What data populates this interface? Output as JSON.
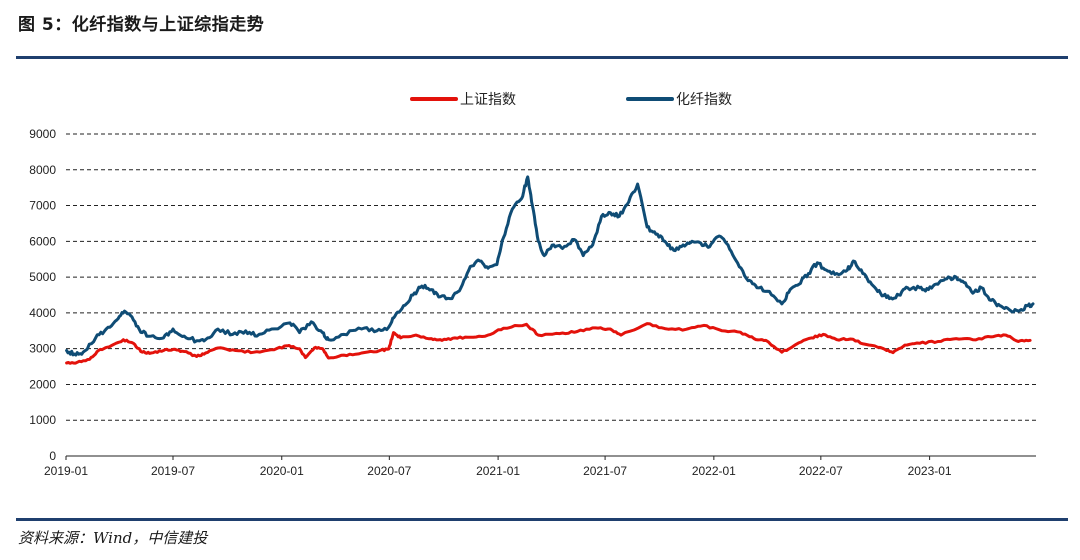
{
  "figure": {
    "title": "图 5：化纤指数与上证综指走势",
    "source": "资料来源：Wind，中信建投"
  },
  "chart_data": {
    "type": "line",
    "title": "",
    "xlabel": "",
    "ylabel": "",
    "ylim": [
      0,
      9000
    ],
    "yticks": [
      0,
      1000,
      2000,
      3000,
      4000,
      5000,
      6000,
      7000,
      8000,
      9000
    ],
    "xticks": [
      "2019-01",
      "2019-07",
      "2020-01",
      "2020-07",
      "2021-01",
      "2021-07",
      "2022-01",
      "2022-07",
      "2023-01"
    ],
    "x_range": [
      "2019-01",
      "2023-06"
    ],
    "grid": "horizontal dashed",
    "legend_position": "top-center",
    "series": [
      {
        "name": "上证指数",
        "color": "#e3120b",
        "points": [
          [
            "2019-01-02",
            2600
          ],
          [
            "2019-01-20",
            2620
          ],
          [
            "2019-02-10",
            2700
          ],
          [
            "2019-02-25",
            2950
          ],
          [
            "2019-03-15",
            3050
          ],
          [
            "2019-04-08",
            3250
          ],
          [
            "2019-04-25",
            3150
          ],
          [
            "2019-05-10",
            2900
          ],
          [
            "2019-05-25",
            2880
          ],
          [
            "2019-06-15",
            2950
          ],
          [
            "2019-07-01",
            2980
          ],
          [
            "2019-07-20",
            2920
          ],
          [
            "2019-08-10",
            2780
          ],
          [
            "2019-08-25",
            2880
          ],
          [
            "2019-09-15",
            3020
          ],
          [
            "2019-10-15",
            2950
          ],
          [
            "2019-11-15",
            2900
          ],
          [
            "2019-12-15",
            2970
          ],
          [
            "2020-01-10",
            3080
          ],
          [
            "2020-01-31",
            3000
          ],
          [
            "2020-02-10",
            2750
          ],
          [
            "2020-02-25",
            3020
          ],
          [
            "2020-03-10",
            3000
          ],
          [
            "2020-03-20",
            2740
          ],
          [
            "2020-04-15",
            2820
          ],
          [
            "2020-05-15",
            2880
          ],
          [
            "2020-06-15",
            2950
          ],
          [
            "2020-06-30",
            2990
          ],
          [
            "2020-07-08",
            3450
          ],
          [
            "2020-07-20",
            3300
          ],
          [
            "2020-08-15",
            3380
          ],
          [
            "2020-09-10",
            3280
          ],
          [
            "2020-09-28",
            3230
          ],
          [
            "2020-10-20",
            3300
          ],
          [
            "2020-11-15",
            3320
          ],
          [
            "2020-12-15",
            3380
          ],
          [
            "2021-01-10",
            3570
          ],
          [
            "2021-02-18",
            3680
          ],
          [
            "2021-03-10",
            3380
          ],
          [
            "2021-04-15",
            3420
          ],
          [
            "2021-05-15",
            3480
          ],
          [
            "2021-06-15",
            3580
          ],
          [
            "2021-07-10",
            3550
          ],
          [
            "2021-07-28",
            3380
          ],
          [
            "2021-09-10",
            3700
          ],
          [
            "2021-10-10",
            3560
          ],
          [
            "2021-11-15",
            3540
          ],
          [
            "2021-12-15",
            3650
          ],
          [
            "2022-01-15",
            3500
          ],
          [
            "2022-02-15",
            3460
          ],
          [
            "2022-03-10",
            3280
          ],
          [
            "2022-03-30",
            3230
          ],
          [
            "2022-04-26",
            2900
          ],
          [
            "2022-05-20",
            3120
          ],
          [
            "2022-06-15",
            3300
          ],
          [
            "2022-07-05",
            3400
          ],
          [
            "2022-07-28",
            3250
          ],
          [
            "2022-08-20",
            3270
          ],
          [
            "2022-09-15",
            3120
          ],
          [
            "2022-10-15",
            3000
          ],
          [
            "2022-10-31",
            2890
          ],
          [
            "2022-11-20",
            3100
          ],
          [
            "2022-12-15",
            3150
          ],
          [
            "2023-01-15",
            3200
          ],
          [
            "2023-02-15",
            3280
          ],
          [
            "2023-03-15",
            3250
          ],
          [
            "2023-04-15",
            3330
          ],
          [
            "2023-05-10",
            3380
          ],
          [
            "2023-05-31",
            3200
          ],
          [
            "2023-06-20",
            3230
          ]
        ]
      },
      {
        "name": "化纤指数",
        "color": "#0f4c75",
        "points": [
          [
            "2019-01-02",
            2950
          ],
          [
            "2019-01-15",
            2850
          ],
          [
            "2019-01-30",
            2900
          ],
          [
            "2019-02-20",
            3300
          ],
          [
            "2019-03-10",
            3550
          ],
          [
            "2019-03-28",
            3800
          ],
          [
            "2019-04-10",
            4050
          ],
          [
            "2019-04-25",
            3800
          ],
          [
            "2019-05-10",
            3450
          ],
          [
            "2019-05-25",
            3350
          ],
          [
            "2019-06-15",
            3300
          ],
          [
            "2019-07-01",
            3550
          ],
          [
            "2019-07-20",
            3350
          ],
          [
            "2019-08-10",
            3220
          ],
          [
            "2019-08-25",
            3250
          ],
          [
            "2019-09-15",
            3550
          ],
          [
            "2019-10-10",
            3400
          ],
          [
            "2019-11-01",
            3500
          ],
          [
            "2019-11-20",
            3350
          ],
          [
            "2019-12-15",
            3550
          ],
          [
            "2020-01-15",
            3720
          ],
          [
            "2020-01-31",
            3450
          ],
          [
            "2020-02-20",
            3750
          ],
          [
            "2020-03-10",
            3450
          ],
          [
            "2020-03-20",
            3250
          ],
          [
            "2020-04-15",
            3400
          ],
          [
            "2020-05-15",
            3550
          ],
          [
            "2020-06-10",
            3500
          ],
          [
            "2020-06-30",
            3600
          ],
          [
            "2020-07-10",
            3900
          ],
          [
            "2020-07-25",
            4200
          ],
          [
            "2020-08-10",
            4500
          ],
          [
            "2020-08-25",
            4750
          ],
          [
            "2020-09-10",
            4650
          ],
          [
            "2020-09-25",
            4450
          ],
          [
            "2020-10-15",
            4400
          ],
          [
            "2020-10-30",
            4700
          ],
          [
            "2020-11-15",
            5300
          ],
          [
            "2020-12-01",
            5450
          ],
          [
            "2020-12-15",
            5250
          ],
          [
            "2020-12-30",
            5350
          ],
          [
            "2021-01-10",
            6100
          ],
          [
            "2021-01-25",
            6900
          ],
          [
            "2021-02-10",
            7200
          ],
          [
            "2021-02-20",
            7800
          ],
          [
            "2021-02-28",
            7000
          ],
          [
            "2021-03-10",
            6000
          ],
          [
            "2021-03-20",
            5600
          ],
          [
            "2021-04-05",
            5900
          ],
          [
            "2021-04-20",
            5800
          ],
          [
            "2021-05-10",
            6050
          ],
          [
            "2021-05-25",
            5600
          ],
          [
            "2021-06-10",
            5900
          ],
          [
            "2021-06-25",
            6700
          ],
          [
            "2021-07-10",
            6800
          ],
          [
            "2021-07-25",
            6700
          ],
          [
            "2021-08-10",
            7100
          ],
          [
            "2021-08-25",
            7600
          ],
          [
            "2021-09-10",
            6400
          ],
          [
            "2021-09-25",
            6200
          ],
          [
            "2021-10-10",
            6000
          ],
          [
            "2021-10-25",
            5750
          ],
          [
            "2021-11-10",
            5900
          ],
          [
            "2021-11-25",
            6000
          ],
          [
            "2021-12-10",
            5950
          ],
          [
            "2021-12-25",
            5850
          ],
          [
            "2022-01-10",
            6150
          ],
          [
            "2022-01-25",
            5900
          ],
          [
            "2022-02-10",
            5400
          ],
          [
            "2022-02-28",
            4900
          ],
          [
            "2022-03-15",
            4700
          ],
          [
            "2022-04-05",
            4600
          ],
          [
            "2022-04-26",
            4250
          ],
          [
            "2022-05-10",
            4650
          ],
          [
            "2022-05-25",
            4800
          ],
          [
            "2022-06-10",
            5100
          ],
          [
            "2022-06-25",
            5400
          ],
          [
            "2022-07-10",
            5200
          ],
          [
            "2022-07-28",
            5100
          ],
          [
            "2022-08-15",
            5200
          ],
          [
            "2022-08-25",
            5450
          ],
          [
            "2022-09-10",
            5100
          ],
          [
            "2022-09-25",
            4800
          ],
          [
            "2022-10-10",
            4550
          ],
          [
            "2022-10-25",
            4400
          ],
          [
            "2022-11-10",
            4500
          ],
          [
            "2022-11-25",
            4700
          ],
          [
            "2022-12-15",
            4700
          ],
          [
            "2022-12-30",
            4650
          ],
          [
            "2023-01-15",
            4800
          ],
          [
            "2023-01-30",
            4950
          ],
          [
            "2023-02-15",
            5000
          ],
          [
            "2023-02-28",
            4850
          ],
          [
            "2023-03-15",
            4550
          ],
          [
            "2023-03-30",
            4700
          ],
          [
            "2023-04-15",
            4350
          ],
          [
            "2023-04-30",
            4200
          ],
          [
            "2023-05-15",
            4100
          ],
          [
            "2023-05-31",
            4050
          ],
          [
            "2023-06-15",
            4200
          ],
          [
            "2023-06-25",
            4250
          ]
        ]
      }
    ]
  }
}
